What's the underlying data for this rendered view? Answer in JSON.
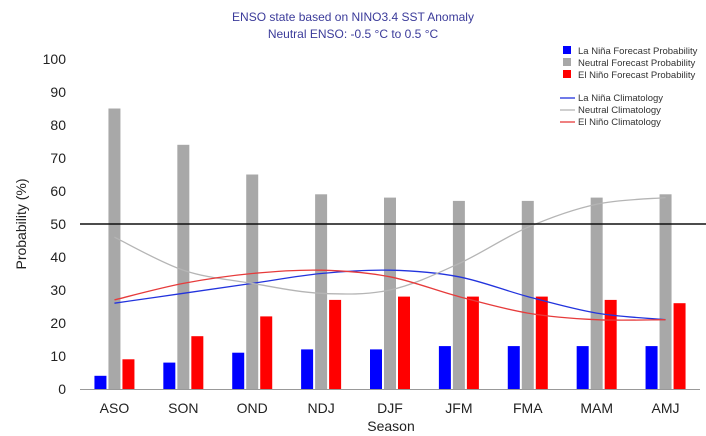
{
  "chart_data": {
    "type": "bar",
    "title": "ENSO state based on NINO3.4 SST Anomaly",
    "subtitle": "Neutral ENSO: -0.5 °C to 0.5 °C",
    "xlabel": "Season",
    "ylabel": "Probability (%)",
    "ylim": [
      0,
      100
    ],
    "yticks": [
      "0",
      "10",
      "20",
      "30",
      "40",
      "50",
      "60",
      "70",
      "80",
      "90",
      "100"
    ],
    "reference_line": 50,
    "categories": [
      "ASO",
      "SON",
      "OND",
      "NDJ",
      "DJF",
      "JFM",
      "FMA",
      "MAM",
      "AMJ"
    ],
    "series": [
      {
        "name": "La Niña Forecast Probability",
        "color": "#0000ff",
        "values": [
          4,
          8,
          11,
          12,
          12,
          13,
          13,
          13,
          13
        ]
      },
      {
        "name": "Neutral Forecast Probability",
        "color": "#a8a8a8",
        "values": [
          85,
          74,
          65,
          59,
          58,
          57,
          57,
          58,
          59
        ]
      },
      {
        "name": "El Niño Forecast Probability",
        "color": "#ff0000",
        "values": [
          9,
          16,
          22,
          27,
          28,
          28,
          28,
          27,
          26
        ]
      }
    ],
    "lines": [
      {
        "name": "La Niña Climatology",
        "color": "#2233dd",
        "values": [
          26,
          29,
          32,
          35,
          36,
          34,
          28,
          23,
          21
        ]
      },
      {
        "name": "Neutral Climatology",
        "color": "#b5b5b5",
        "values": [
          46,
          36,
          32,
          29,
          30,
          38,
          49,
          56,
          58
        ]
      },
      {
        "name": "El Niño Climatology",
        "color": "#e63b3b",
        "values": [
          27,
          32,
          35,
          36,
          34,
          28,
          23,
          21,
          21
        ]
      }
    ],
    "legend_position": "top-right",
    "grid": false
  }
}
